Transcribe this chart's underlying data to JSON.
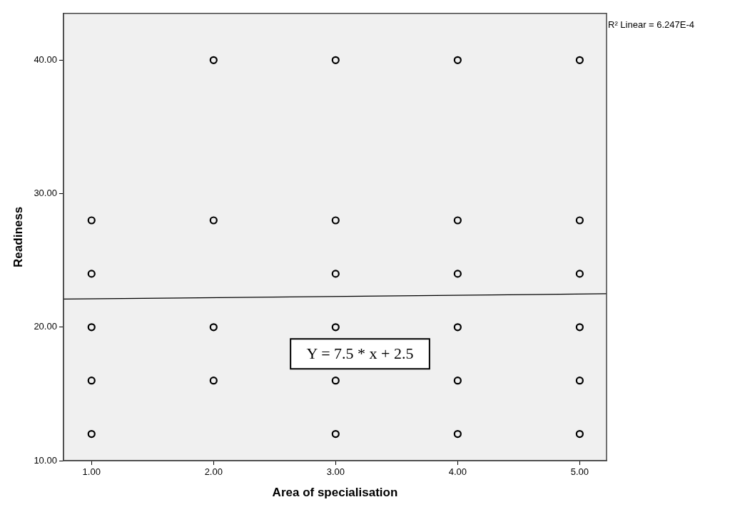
{
  "chart_data": {
    "type": "scatter",
    "xlabel": "Area of specialisation",
    "ylabel": "Readiness",
    "xlim": [
      0.77,
      5.22
    ],
    "ylim": [
      10,
      43.5
    ],
    "xticks": [
      {
        "value": 1,
        "label": "1.00"
      },
      {
        "value": 2,
        "label": "2.00"
      },
      {
        "value": 3,
        "label": "3.00"
      },
      {
        "value": 4,
        "label": "4.00"
      },
      {
        "value": 5,
        "label": "5.00"
      }
    ],
    "yticks": [
      {
        "value": 10,
        "label": "10.00"
      },
      {
        "value": 20,
        "label": "20.00"
      },
      {
        "value": 30,
        "label": "30.00"
      },
      {
        "value": 40,
        "label": "40.00"
      }
    ],
    "grid": false,
    "legend": false,
    "marker": "circle",
    "annotations": [
      "Y = 7.5 * x + 2.5",
      "R² Linear = 6.247E-4"
    ],
    "series": [
      {
        "type": "scatter",
        "color": "#000000",
        "x": [
          1,
          1,
          1,
          1,
          1,
          2,
          2,
          2,
          2,
          3,
          3,
          3,
          3,
          3,
          3,
          4,
          4,
          4,
          4,
          4,
          4,
          5,
          5,
          5,
          5,
          5,
          5
        ],
        "values": [
          28,
          24,
          20,
          16,
          12,
          40,
          28,
          20,
          16,
          40,
          28,
          24,
          20,
          16,
          12,
          40,
          28,
          24,
          20,
          16,
          12,
          40,
          28,
          24,
          20,
          16,
          12
        ]
      },
      {
        "type": "line",
        "color": "#000000",
        "line_style": "solid",
        "marker": "none",
        "x": [
          0.77,
          5.22
        ],
        "values": [
          22.1,
          22.5
        ]
      }
    ]
  }
}
